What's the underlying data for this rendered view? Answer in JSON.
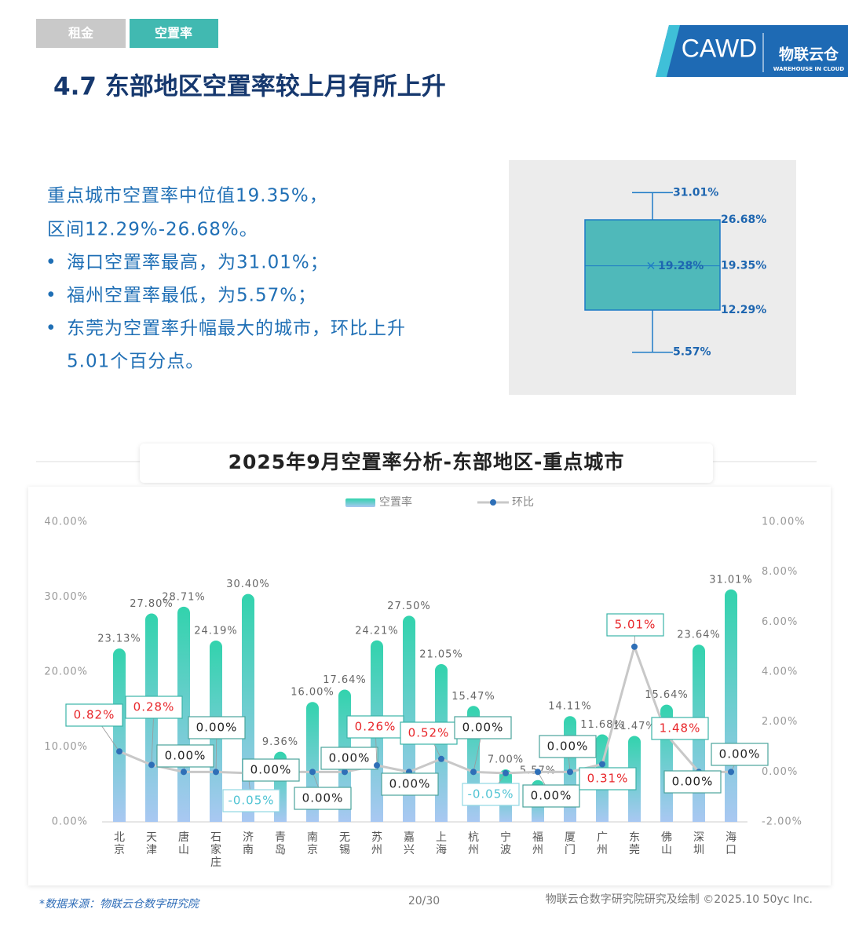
{
  "header": {
    "tabs": [
      "租金",
      "空置率"
    ],
    "title": "4.7 东部地区空置率较上月有所上升",
    "logo": {
      "brand": "CAWD",
      "name": "物联云仓",
      "subtitle": "WAREHOUSE IN CLOUD"
    }
  },
  "summary": {
    "lines": [
      "重点城市空置率中位值19.35%，",
      "区间12.29%-26.68%。"
    ],
    "bullets": [
      "海口空置率最高，为31.01%；",
      "福州空置率最低，为5.57%；",
      "东莞为空置率升幅最大的城市，环比上升",
      "5.01个百分点。"
    ]
  },
  "chart_data": [
    {
      "type": "box",
      "min": 5.57,
      "q1": 12.29,
      "median": 19.35,
      "mean": 19.28,
      "q3": 26.68,
      "max": 31.01,
      "color": "#4fb9ba",
      "value_labels": {
        "min": "5.57%",
        "q1": "12.29%",
        "median": "19.35%",
        "mean": "19.28%",
        "q3": "26.68%",
        "max": "31.01%"
      }
    },
    {
      "type": "bar",
      "title": "2025年9月空置率分析-东部地区-重点城市",
      "categories": [
        "北京",
        "天津",
        "唐山",
        "石家庄",
        "济南",
        "青岛",
        "南京",
        "无锡",
        "苏州",
        "嘉兴",
        "上海",
        "杭州",
        "宁波",
        "福州",
        "厦门",
        "广州",
        "东莞",
        "佛山",
        "深圳",
        "海口"
      ],
      "series": [
        {
          "name": "空置率",
          "type": "bar",
          "color": "#3ccfb0",
          "values": [
            23.13,
            27.8,
            28.71,
            24.19,
            30.4,
            9.36,
            16.0,
            17.64,
            24.21,
            27.5,
            21.05,
            15.47,
            7.0,
            5.57,
            14.11,
            11.68,
            11.47,
            15.64,
            23.64,
            31.01
          ],
          "value_labels": [
            "23.13%",
            "27.80%",
            "28.71%",
            "24.19%",
            "30.40%",
            "9.36%",
            "16.00%",
            "17.64%",
            "24.21%",
            "27.50%",
            "21.05%",
            "15.47%",
            "7.00%",
            "5.57%",
            "14.11%",
            "11.68%",
            "11.47%",
            "15.64%",
            "23.64%",
            "31.01%"
          ]
        },
        {
          "name": "环比",
          "type": "line",
          "axis": "y2",
          "color": "#c8c8c8",
          "values": [
            0.82,
            0.28,
            0.0,
            0.0,
            -0.05,
            0.0,
            0.0,
            0.0,
            0.26,
            0.0,
            0.52,
            0.0,
            -0.05,
            0.0,
            0.0,
            0.31,
            5.01,
            1.48,
            0.0,
            0.0
          ],
          "value_labels": [
            "0.82%",
            "0.28%",
            "0.00%",
            "0.00%",
            "-0.05%",
            "0.00%",
            "0.00%",
            "0.00%",
            "0.26%",
            "0.00%",
            "0.52%",
            "0.00%",
            "-0.05%",
            "0.00%",
            "0.00%",
            "0.31%",
            "5.01%",
            "1.48%",
            "0.00%",
            "0.00%"
          ]
        }
      ],
      "ylim": [
        0,
        40
      ],
      "yticks": [
        {
          "value": 0,
          "label": "0.00%"
        },
        {
          "value": 10,
          "label": "10.00%"
        },
        {
          "value": 20,
          "label": "20.00%"
        },
        {
          "value": 30,
          "label": "30.00%"
        },
        {
          "value": 40,
          "label": "40.00%"
        }
      ],
      "y2lim": [
        -2,
        10
      ],
      "y2ticks": [
        {
          "value": -2,
          "label": "-2.00%"
        },
        {
          "value": 0,
          "label": "0.00%"
        },
        {
          "value": 2,
          "label": "2.00%"
        },
        {
          "value": 4,
          "label": "4.00%"
        },
        {
          "value": 6,
          "label": "6.00%"
        },
        {
          "value": 8,
          "label": "8.00%"
        },
        {
          "value": 10,
          "label": "10.00%"
        }
      ],
      "legend": "top"
    }
  ],
  "footer": {
    "source": "*数据来源：物联云仓数字研究院",
    "page": "20/30",
    "credit": "物联云仓数字研究院研究及绘制   ©2025.10 50yc Inc."
  }
}
